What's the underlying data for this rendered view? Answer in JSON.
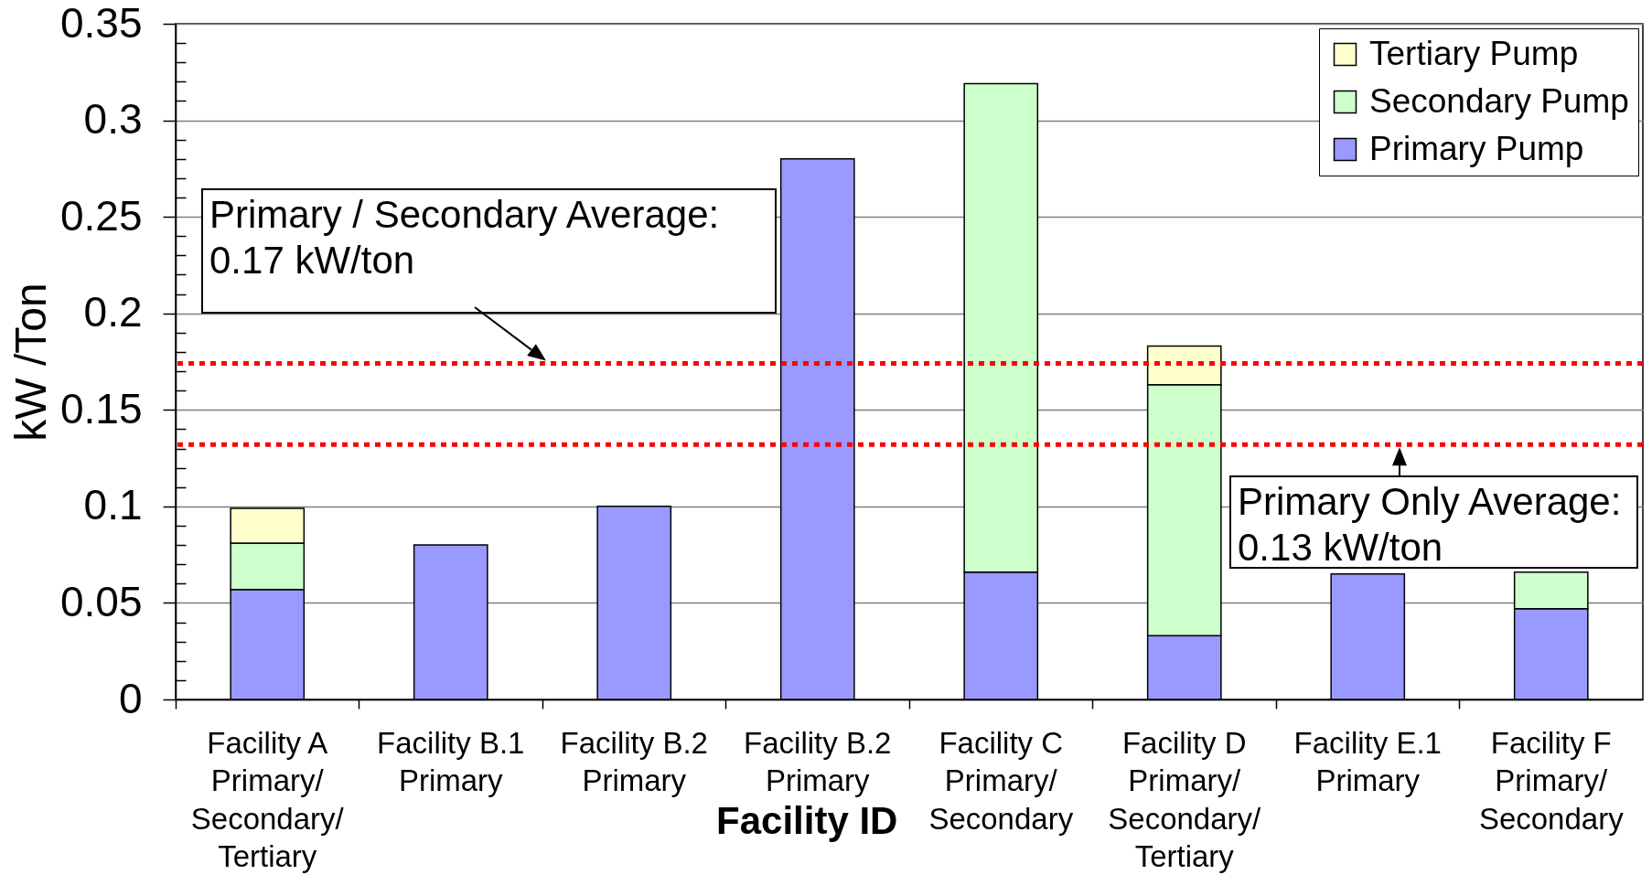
{
  "chart_data": {
    "type": "bar",
    "stacked": true,
    "categories": [
      "Facility A\nPrimary/\nSecondary/\nTertiary",
      "Facility B.1\nPrimary",
      "Facility B.2\nPrimary",
      "Facility B.2\nPrimary",
      "Facility C\nPrimary/\nSecondary",
      "Facility D\nPrimary/\nSecondary/\nTertiary",
      "Facility E.1\nPrimary",
      "Facility F\nPrimary/\nSecondary"
    ],
    "series": [
      {
        "name": "Primary Pump",
        "color": "#9999ff",
        "values": [
          0.057,
          0.08,
          0.1,
          0.28,
          0.066,
          0.033,
          0.065,
          0.047
        ]
      },
      {
        "name": "Secondary Pump",
        "color": "#ccffcc",
        "values": [
          0.024,
          null,
          null,
          null,
          0.253,
          0.13,
          null,
          0.019
        ]
      },
      {
        "name": "Tertiary Pump",
        "color": "#ffffcc",
        "values": [
          0.018,
          null,
          null,
          null,
          null,
          0.02,
          null,
          null
        ]
      }
    ],
    "xlabel": "Facility ID",
    "ylabel": "kW /Ton",
    "ylim": [
      0,
      0.35
    ],
    "yticks": [
      0,
      {
        "value": 0.01,
        "label": null
      },
      {
        "value": 0.02,
        "label": null
      },
      {
        "value": 0.03,
        "label": null
      },
      {
        "value": 0.04,
        "label": null
      },
      0.05,
      {
        "value": 0.06,
        "label": null
      },
      {
        "value": 0.07,
        "label": null
      },
      {
        "value": 0.08,
        "label": null
      },
      {
        "value": 0.09,
        "label": null
      },
      0.1,
      {
        "value": 0.11,
        "label": null
      },
      {
        "value": 0.12,
        "label": null
      },
      {
        "value": 0.13,
        "label": null
      },
      {
        "value": 0.14,
        "label": null
      },
      0.15,
      {
        "value": 0.16,
        "label": null
      },
      {
        "value": 0.17,
        "label": null
      },
      {
        "value": 0.18,
        "label": null
      },
      {
        "value": 0.19,
        "label": null
      },
      0.2,
      {
        "value": 0.21,
        "label": null
      },
      {
        "value": 0.22,
        "label": null
      },
      {
        "value": 0.23,
        "label": null
      },
      {
        "value": 0.24,
        "label": null
      },
      0.25,
      {
        "value": 0.26,
        "label": null
      },
      {
        "value": 0.27,
        "label": null
      },
      {
        "value": 0.28,
        "label": null
      },
      {
        "value": 0.29,
        "label": null
      },
      0.3,
      {
        "value": 0.31,
        "label": null
      },
      {
        "value": 0.32,
        "label": null
      },
      {
        "value": 0.33,
        "label": null
      },
      {
        "value": 0.34,
        "label": null
      },
      0.35
    ],
    "grid": "y",
    "legend": "top right",
    "ref_lines": [
      {
        "axis": "y",
        "value": 0.174,
        "label": "Primary / Secondary Average:\n0.17 kW/ton",
        "color": "#ff0000",
        "line_style": "dotted"
      },
      {
        "axis": "y",
        "value": 0.132,
        "label": "Primary Only Average:\n0.13 kW/ton",
        "color": "#ff0000",
        "line_style": "dotted"
      }
    ]
  }
}
